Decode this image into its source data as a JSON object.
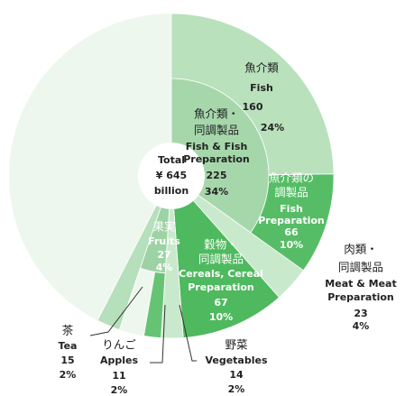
{
  "chart_data": {
    "type": "sunburst",
    "center_lines": [
      "Total",
      "¥ 645",
      "billion"
    ],
    "total": 645,
    "segments": [
      {
        "ja": [
          "魚介類・",
          "同調製品"
        ],
        "en": [
          "Fish & Fish",
          "Preparation"
        ],
        "value": 225,
        "share_label": "34%",
        "color": "#a6d7ab",
        "children": [
          {
            "ja": [
              "魚介類"
            ],
            "en": [
              "Fish"
            ],
            "value": 160,
            "share_label": "24%",
            "color": "#b8e1bc"
          },
          {
            "ja": [
              "魚介類の",
              "調製品"
            ],
            "en": [
              "Fish",
              "Preparation"
            ],
            "value": 66,
            "share_label": "10%",
            "color": "#56bd66"
          }
        ]
      },
      {
        "ja": [
          "肉類・",
          "同調製品"
        ],
        "en": [
          "Meat & Meat",
          "Preparation"
        ],
        "value": 23,
        "share_label": "4%",
        "color": "#c9e9cc"
      },
      {
        "ja": [
          "穀物・",
          "同調製品"
        ],
        "en": [
          "Cereals, Cereal",
          "Preparation"
        ],
        "value": 67,
        "share_label": "10%",
        "color": "#4fb95f"
      },
      {
        "ja": [
          "野菜"
        ],
        "en": [
          "Vegetables"
        ],
        "value": 14,
        "share_label": "2%",
        "color": "#c9e9cc"
      },
      {
        "ja": [
          "果実"
        ],
        "en": [
          "Fruits"
        ],
        "value": 27,
        "share_label": "4%",
        "color": "#9dd3a4",
        "children": [
          {
            "ja": [
              "りんご"
            ],
            "en": [
              "Apples"
            ],
            "value": 11,
            "share_label": "2%",
            "color": "#67c374"
          }
        ]
      },
      {
        "ja": [
          "茶"
        ],
        "en": [
          "Tea"
        ],
        "value": 15,
        "share_label": "2%",
        "color": "#b6dfbb"
      }
    ]
  }
}
